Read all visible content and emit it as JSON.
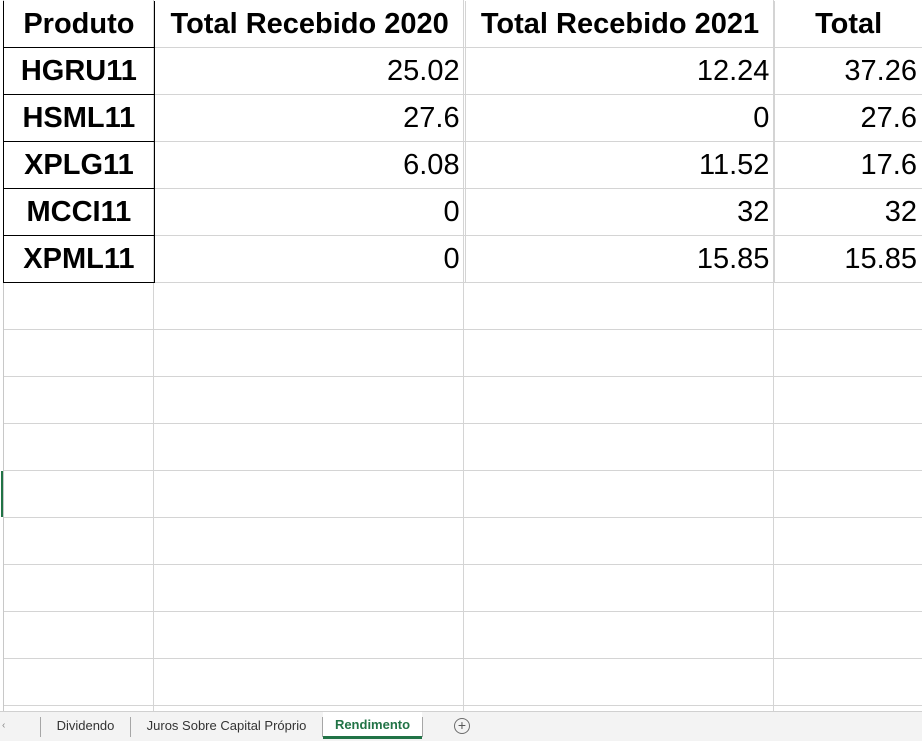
{
  "table": {
    "headers": [
      "Produto",
      "Total Recebido 2020",
      "Total Recebido 2021",
      "Total"
    ],
    "rows": [
      {
        "produto": "HGRU11",
        "y2020": "25.02",
        "y2021": "12.24",
        "total": "37.26"
      },
      {
        "produto": "HSML11",
        "y2020": "27.6",
        "y2021": "0",
        "total": "27.6"
      },
      {
        "produto": "XPLG11",
        "y2020": "6.08",
        "y2021": "11.52",
        "total": "17.6"
      },
      {
        "produto": "MCCI11",
        "y2020": "0",
        "y2021": "32",
        "total": "32"
      },
      {
        "produto": "XPML11",
        "y2020": "0",
        "y2021": "15.85",
        "total": "15.85"
      }
    ]
  },
  "sheet_tabs": {
    "tabs": [
      {
        "label": "Dividendo",
        "active": false
      },
      {
        "label": "Juros Sobre Capital Próprio",
        "active": false
      },
      {
        "label": "Rendimento",
        "active": true
      }
    ],
    "add_icon": "plus-circle-icon",
    "scroll_icon": "scroll-left-icon"
  },
  "colors": {
    "accent": "#217346",
    "gridline": "#d4d4d4",
    "tabbar_bg": "#f3f3f3"
  }
}
